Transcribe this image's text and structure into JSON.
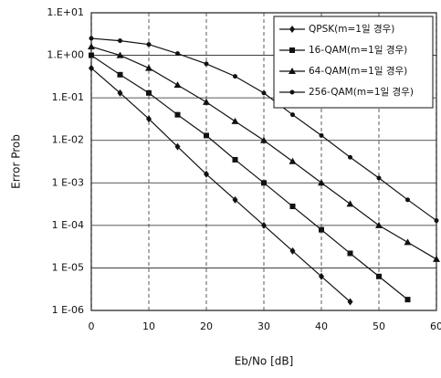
{
  "chart_data": {
    "type": "line",
    "log_y": true,
    "grid": true,
    "legend": "upper right",
    "xlabel": "Eb/No [dB]",
    "ylabel": "Error Prob",
    "x": [
      0,
      5,
      10,
      15,
      20,
      25,
      30,
      35,
      40,
      45,
      50,
      55,
      60
    ],
    "xlim": [
      0,
      60
    ],
    "xticks": [
      0,
      10,
      20,
      30,
      40,
      50,
      60
    ],
    "ylim": [
      1e-06,
      10
    ],
    "yticks": [
      {
        "value": 10,
        "label": "1.E+01"
      },
      {
        "value": 1,
        "label": "1.E+00"
      },
      {
        "value": 0.1,
        "label": "1.E-01"
      },
      {
        "value": 0.01,
        "label": "1.E-02"
      },
      {
        "value": 0.001,
        "label": "1 E-03"
      },
      {
        "value": 0.0001,
        "label": "1 E-04"
      },
      {
        "value": 1e-05,
        "label": "1 E-05"
      },
      {
        "value": 1e-06,
        "label": "1 E-06"
      }
    ],
    "series": [
      {
        "name": "QPSK(m=1일 경우)",
        "color": "#111111",
        "marker": "diamond",
        "values": [
          0.5,
          0.13,
          0.032,
          0.0071,
          0.0016,
          0.0004,
          0.0001,
          2.5e-05,
          6.3e-06,
          1.6e-06,
          null,
          null,
          null
        ]
      },
      {
        "name": "16-QAM(m=1일 경우)",
        "color": "#111111",
        "marker": "square",
        "values": [
          1,
          0.35,
          0.13,
          0.04,
          0.013,
          0.0035,
          0.001,
          0.00028,
          7.9e-05,
          2.2e-05,
          6.3e-06,
          1.8e-06,
          null
        ]
      },
      {
        "name": "64-QAM(m=1일 경우)",
        "color": "#111111",
        "marker": "triangle",
        "values": [
          1.6,
          1,
          0.5,
          0.2,
          0.079,
          0.028,
          0.01,
          0.0032,
          0.001,
          0.00032,
          0.0001,
          4e-05,
          1.6e-05
        ]
      },
      {
        "name": "256-QAM(m=1일 경우)",
        "color": "#111111",
        "marker": "circle",
        "values": [
          2.5,
          2.2,
          1.8,
          1.1,
          0.63,
          0.32,
          0.13,
          0.04,
          0.013,
          0.004,
          0.0013,
          0.0004,
          0.00013
        ]
      }
    ]
  }
}
